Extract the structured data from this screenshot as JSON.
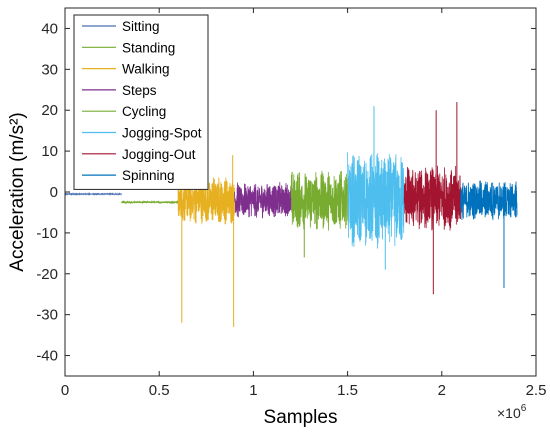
{
  "chart_data": {
    "type": "line",
    "xlabel": "Samples",
    "ylabel": "Acceleration (m/s²)",
    "x_exponent": "×10",
    "x_exponent_power": "6",
    "xlim": [
      0,
      2500000
    ],
    "ylim": [
      -45,
      45
    ],
    "x_ticks": [
      0,
      500000,
      1000000,
      1500000,
      2000000,
      2500000
    ],
    "x_tick_labels": [
      "0",
      "0.5",
      "1",
      "1.5",
      "2",
      "2.5"
    ],
    "y_ticks": [
      -40,
      -30,
      -20,
      -10,
      0,
      10,
      20,
      30,
      40
    ],
    "y_tick_labels": [
      "-40",
      "-30",
      "-20",
      "-10",
      "0",
      "10",
      "20",
      "30",
      "40"
    ],
    "grid": false,
    "legend_position": "top-left",
    "series": [
      {
        "name": "Sitting",
        "color": "#4a6fb0",
        "x_range": [
          0,
          300000
        ],
        "baseline": -0.5,
        "amplitude": 0.1,
        "spikes": []
      },
      {
        "name": "Standing",
        "color": "#77ac30",
        "x_range": [
          300000,
          600000
        ],
        "baseline": -2.5,
        "amplitude": 0.2,
        "spikes": []
      },
      {
        "name": "Walking",
        "color": "#e6b021",
        "x_range": [
          600000,
          900000
        ],
        "baseline": -2.0,
        "amplitude": 6,
        "spikes": [
          {
            "x": 620000,
            "y": -32
          },
          {
            "x": 645000,
            "y": 9
          },
          {
            "x": 895000,
            "y": -33
          },
          {
            "x": 890000,
            "y": 9
          }
        ]
      },
      {
        "name": "Steps",
        "color": "#7e2f8e",
        "x_range": [
          900000,
          1200000
        ],
        "baseline": -2.0,
        "amplitude": 4.5,
        "spikes": []
      },
      {
        "name": "Cycling",
        "color": "#77ac30",
        "x_range": [
          1200000,
          1500000
        ],
        "baseline": -2.0,
        "amplitude": 7.5,
        "spikes": [
          {
            "x": 1270000,
            "y": -16
          }
        ]
      },
      {
        "name": "Jogging-Spot",
        "color": "#4dbeee",
        "x_range": [
          1500000,
          1800000
        ],
        "baseline": -2.0,
        "amplitude": 12,
        "spikes": [
          {
            "x": 1640000,
            "y": 21
          },
          {
            "x": 1700000,
            "y": -19
          }
        ]
      },
      {
        "name": "Jogging-Out",
        "color": "#a2142f",
        "x_range": [
          1800000,
          2100000
        ],
        "baseline": -1.5,
        "amplitude": 8,
        "spikes": [
          {
            "x": 1955000,
            "y": -25
          },
          {
            "x": 1970000,
            "y": 20
          },
          {
            "x": 2080000,
            "y": 22
          }
        ]
      },
      {
        "name": "Spinning",
        "color": "#0072bd",
        "x_range": [
          2100000,
          2400000
        ],
        "baseline": -2.0,
        "amplitude": 5,
        "spikes": [
          {
            "x": 2330000,
            "y": -23.5
          }
        ]
      }
    ]
  }
}
